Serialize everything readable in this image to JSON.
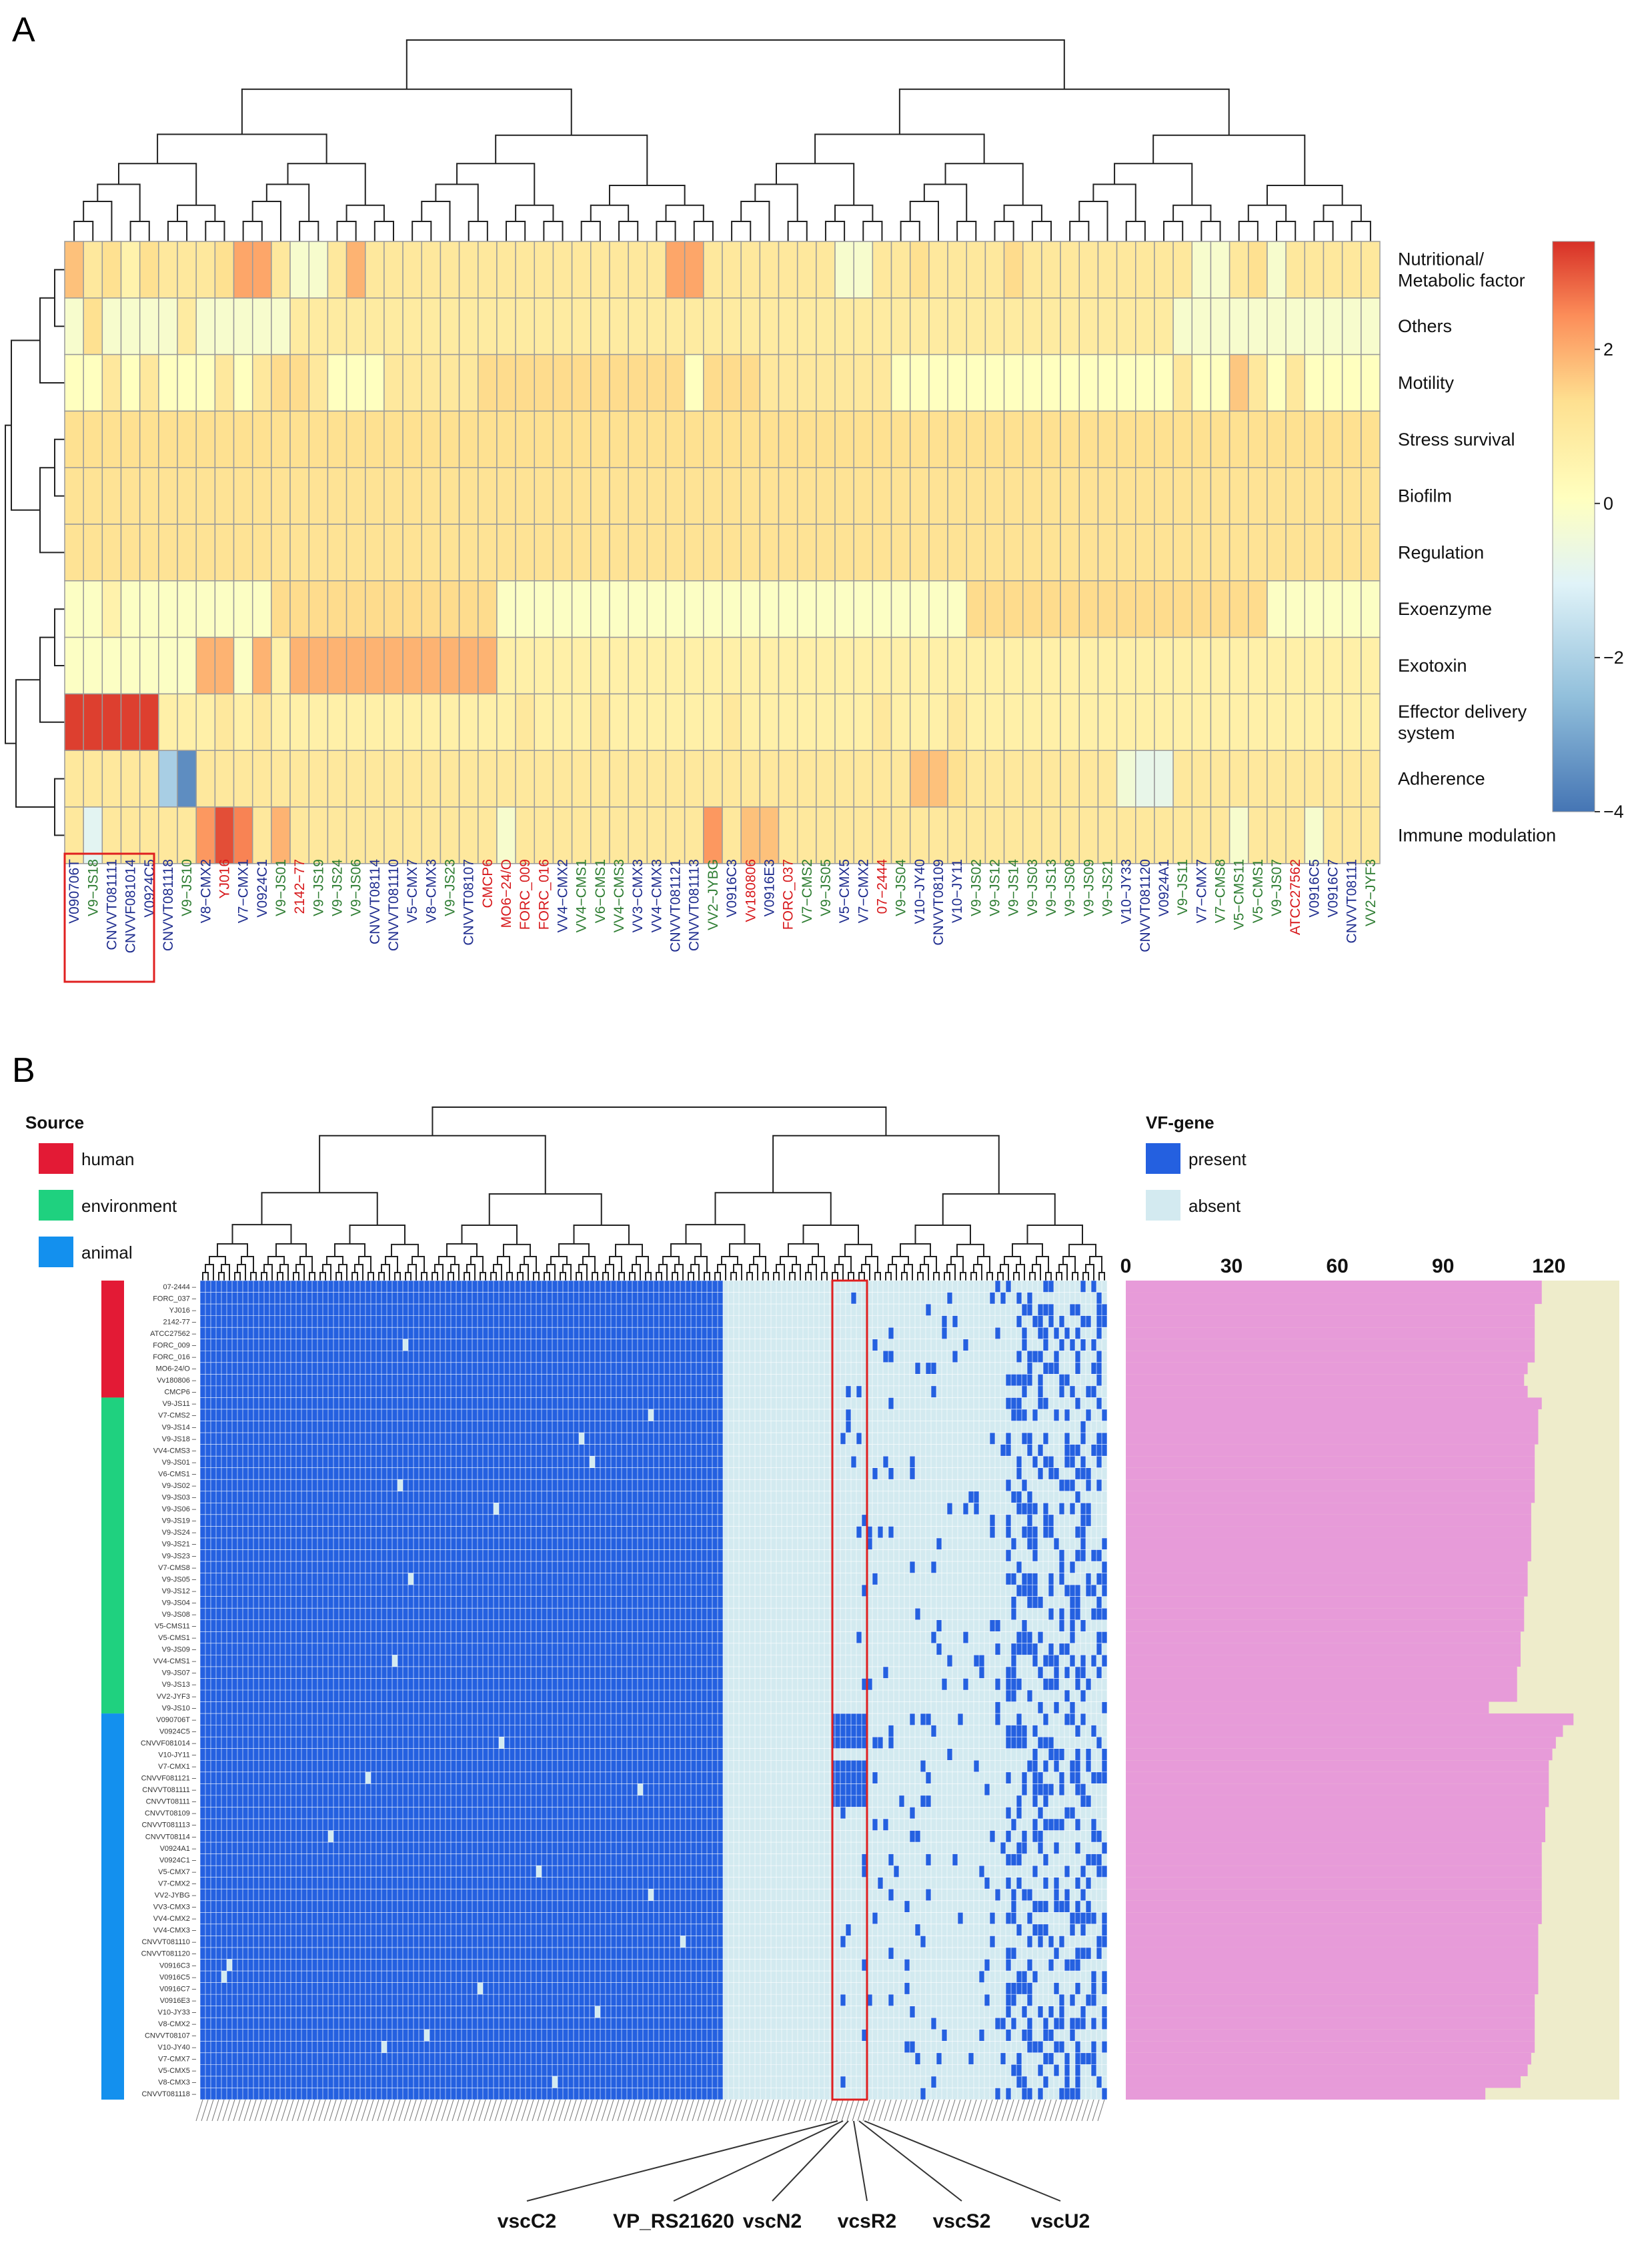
{
  "chart_data": [
    {
      "panel": "A",
      "type": "heatmap",
      "rows": [
        "Nutritional/ Metabolic factor",
        "Others",
        "Motility",
        "Stress survival",
        "Biofilm",
        "Regulation",
        "Exoenzyme",
        "Exotoxin",
        "Effector delivery system",
        "Adherence",
        "Immune modulation"
      ],
      "row_label_lines": [
        [
          "Nutritional/",
          "Metabolic factor"
        ],
        [
          "Others"
        ],
        [
          "Motility"
        ],
        [
          "Stress survival"
        ],
        [
          "Biofilm"
        ],
        [
          "Regulation"
        ],
        [
          "Exoenzyme"
        ],
        [
          "Exotoxin"
        ],
        [
          "Effector delivery",
          "system"
        ],
        [
          "Adherence"
        ],
        [
          "Immune modulation"
        ]
      ],
      "columns": [
        "V090706T",
        "V9−JS18",
        "CNVVT081111",
        "CNVVF081014",
        "V0924C5",
        "CNVVT081118",
        "V9−JS10",
        "V8−CMX2",
        "YJ016",
        "V7−CMX1",
        "V0924C1",
        "V9−JS01",
        "2142−77",
        "V9−JS19",
        "V9−JS24",
        "V9−JS06",
        "CNVVT08114",
        "CNVVT081110",
        "V5−CMX7",
        "V8−CMX3",
        "V9−JS23",
        "CNVVT08107",
        "CMCP6",
        "MO6−24/O",
        "FORC_009",
        "FORC_016",
        "VV4−CMX2",
        "VV4−CMS1",
        "V6−CMS1",
        "VV4−CMS3",
        "VV3−CMX3",
        "VV4−CMX3",
        "CNVVT081121",
        "CNVVT081113",
        "VV2−JYBG",
        "V0916C3",
        "Vv180806",
        "V0916E3",
        "FORC_037",
        "V7−CMS2",
        "V9−JS05",
        "V5−CMX5",
        "V7−CMX2",
        "07−2444",
        "V9−JS04",
        "V10−JY40",
        "CNVVT08109",
        "V10−JY11",
        "V9−JS02",
        "V9−JS12",
        "V9−JS14",
        "V9−JS03",
        "V9−JS13",
        "V9−JS08",
        "V9−JS09",
        "V9−JS21",
        "V10−JY33",
        "CNVVT081120",
        "V0924A1",
        "V9−JS11",
        "V7−CMX7",
        "V7−CMS8",
        "V5−CMS11",
        "V5−CMS1",
        "V9−JS07",
        "ATCC27562",
        "V0916C5",
        "V0916C7",
        "CNVVT08111",
        "VV2−JYF3"
      ],
      "column_colors": [
        "blue",
        "green",
        "blue",
        "blue",
        "blue",
        "blue",
        "green",
        "blue",
        "red",
        "blue",
        "blue",
        "green",
        "red",
        "green",
        "green",
        "green",
        "blue",
        "blue",
        "blue",
        "blue",
        "green",
        "blue",
        "red",
        "red",
        "red",
        "red",
        "blue",
        "green",
        "green",
        "green",
        "blue",
        "blue",
        "blue",
        "blue",
        "green",
        "blue",
        "red",
        "blue",
        "red",
        "green",
        "green",
        "blue",
        "blue",
        "red",
        "green",
        "blue",
        "blue",
        "blue",
        "green",
        "green",
        "green",
        "green",
        "green",
        "green",
        "green",
        "green",
        "blue",
        "blue",
        "blue",
        "green",
        "blue",
        "green",
        "green",
        "green",
        "green",
        "red",
        "blue",
        "blue",
        "blue",
        "green"
      ],
      "column_color_hex": {
        "blue": "#1f2d8f",
        "green": "#2e7d32",
        "red": "#d7191c"
      },
      "colorbar": {
        "min": -4,
        "max": 3.4,
        "ticks": [
          2,
          0,
          -2,
          -4
        ],
        "colors": [
          "#4575b4",
          "#91bfdb",
          "#e0f3f8",
          "#ffffbf",
          "#fee090",
          "#fc8d59",
          "#d73027"
        ]
      },
      "highlight_columns": [
        0,
        4
      ],
      "values": [
        [
          1.4,
          0.6,
          0.9,
          0.2,
          0.9,
          0.6,
          0.6,
          0.6,
          0.9,
          1.8,
          1.8,
          0.6,
          -0.6,
          -0.6,
          0.6,
          1.6,
          0.6,
          0.6,
          0.6,
          0.6,
          0.6,
          0.6,
          0.6,
          0.6,
          0.6,
          0.6,
          0.6,
          0.6,
          0.6,
          0.6,
          0.6,
          0.6,
          1.8,
          1.8,
          0.6,
          0.6,
          0.6,
          0.6,
          0.6,
          0.6,
          0.6,
          -0.6,
          -0.6,
          0.6,
          0.6,
          0.9,
          0.6,
          0.6,
          0.6,
          0.6,
          1.0,
          0.6,
          0.6,
          0.6,
          0.6,
          0.6,
          0.6,
          0.6,
          0.6,
          0.6,
          -0.6,
          -0.6,
          0.6,
          0.9,
          -0.6,
          0.6,
          0.6,
          0.6,
          0.6,
          0.6
        ],
        [
          -0.6,
          0.9,
          -0.6,
          -0.6,
          -0.6,
          -0.6,
          0.5,
          -0.6,
          -0.6,
          -0.6,
          -0.6,
          -0.6,
          0.5,
          0.5,
          0.5,
          0.5,
          0.5,
          0.5,
          0.5,
          0.5,
          0.5,
          0.5,
          0.5,
          0.5,
          0.5,
          0.5,
          0.5,
          0.5,
          0.5,
          0.5,
          0.5,
          0.5,
          0.5,
          0.5,
          0.5,
          0.5,
          0.5,
          0.5,
          0.5,
          0.5,
          0.5,
          0.5,
          0.5,
          0.5,
          0.5,
          0.5,
          0.5,
          0.5,
          0.5,
          0.5,
          0.5,
          0.5,
          0.5,
          0.5,
          0.5,
          0.5,
          0.5,
          0.5,
          0.5,
          -0.6,
          -0.6,
          -0.6,
          -0.6,
          -0.6,
          -0.6,
          -0.6,
          -0.6,
          -0.6,
          -0.6,
          -0.6
        ],
        [
          -0.3,
          -0.3,
          0.6,
          -0.3,
          0.6,
          -0.3,
          -0.3,
          -0.3,
          0.6,
          -0.3,
          0.6,
          1.0,
          1.0,
          0.6,
          -0.3,
          -0.3,
          -0.3,
          0.6,
          0.6,
          0.6,
          0.6,
          0.6,
          1.0,
          1.0,
          1.0,
          1.0,
          1.0,
          1.0,
          1.0,
          1.0,
          1.0,
          1.0,
          1.0,
          -0.3,
          1.0,
          1.0,
          1.0,
          0.6,
          0.6,
          0.6,
          0.6,
          0.6,
          0.6,
          0.6,
          -0.3,
          -0.3,
          -0.3,
          -0.3,
          -0.3,
          -0.3,
          -0.3,
          -0.3,
          -0.3,
          -0.3,
          -0.3,
          -0.3,
          -0.3,
          -0.3,
          -0.3,
          0.6,
          -0.3,
          -0.3,
          1.3,
          0.6,
          -0.3,
          0.6,
          -0.3,
          -0.3,
          -0.3,
          -0.3
        ],
        [
          0.9,
          0.9,
          0.9,
          0.9,
          0.9,
          0.9,
          0.9,
          0.9,
          0.9,
          0.9,
          0.9,
          0.9,
          0.9,
          0.9,
          0.9,
          0.9,
          0.9,
          0.9,
          0.9,
          0.9,
          0.9,
          0.9,
          0.9,
          0.9,
          0.9,
          0.9,
          0.9,
          0.9,
          0.9,
          0.9,
          0.9,
          0.9,
          0.9,
          0.9,
          0.9,
          0.9,
          0.9,
          0.9,
          0.9,
          0.9,
          0.9,
          0.9,
          0.9,
          0.9,
          0.9,
          0.9,
          0.9,
          0.9,
          0.9,
          0.9,
          0.9,
          0.9,
          0.9,
          0.9,
          0.9,
          0.9,
          0.9,
          0.9,
          0.9,
          0.9,
          0.9,
          0.9,
          0.9,
          0.9,
          0.9,
          0.9,
          0.9,
          0.9,
          0.9,
          0.9
        ],
        [
          0.8,
          0.8,
          0.8,
          0.8,
          0.8,
          0.8,
          0.8,
          0.8,
          0.8,
          0.8,
          0.8,
          0.8,
          0.8,
          0.8,
          0.8,
          0.8,
          0.8,
          0.8,
          0.8,
          0.8,
          0.8,
          0.8,
          0.8,
          0.8,
          0.8,
          0.8,
          0.8,
          0.8,
          0.8,
          0.8,
          0.8,
          0.8,
          0.8,
          0.8,
          0.8,
          0.8,
          0.8,
          0.8,
          0.8,
          0.8,
          0.8,
          0.8,
          0.8,
          0.8,
          0.8,
          0.8,
          0.8,
          0.8,
          0.8,
          0.8,
          0.8,
          0.8,
          0.8,
          0.8,
          0.8,
          0.8,
          0.8,
          0.8,
          0.8,
          0.8,
          0.8,
          0.8,
          0.8,
          0.8,
          0.8,
          0.8,
          0.8,
          0.8,
          0.8,
          0.8
        ],
        [
          0.8,
          0.8,
          0.8,
          0.8,
          0.8,
          0.8,
          0.8,
          0.8,
          0.8,
          0.8,
          0.8,
          0.8,
          0.8,
          0.8,
          0.8,
          0.8,
          0.8,
          0.8,
          0.8,
          0.8,
          0.8,
          0.8,
          0.8,
          0.8,
          0.8,
          0.8,
          0.8,
          0.8,
          0.8,
          0.8,
          0.8,
          0.8,
          0.8,
          0.8,
          0.8,
          0.8,
          0.8,
          0.8,
          0.8,
          0.8,
          0.8,
          0.8,
          0.8,
          0.8,
          0.8,
          0.8,
          0.8,
          0.8,
          0.8,
          0.8,
          0.8,
          0.8,
          0.8,
          0.8,
          0.8,
          0.8,
          0.8,
          0.8,
          0.8,
          0.8,
          0.8,
          0.8,
          0.8,
          0.8,
          0.8,
          0.8,
          0.8,
          0.8,
          0.8,
          0.8
        ],
        [
          -0.4,
          -0.4,
          0.2,
          -0.4,
          -0.4,
          -0.4,
          -0.4,
          -0.4,
          -0.4,
          -0.4,
          -0.4,
          1.0,
          1.0,
          1.0,
          1.0,
          1.0,
          1.0,
          1.0,
          1.0,
          1.0,
          1.0,
          1.0,
          1.0,
          -0.4,
          -0.4,
          -0.4,
          -0.4,
          -0.4,
          -0.4,
          -0.4,
          -0.4,
          -0.4,
          -0.4,
          -0.4,
          -0.4,
          -0.4,
          -0.4,
          -0.4,
          -0.4,
          -0.4,
          -0.4,
          -0.4,
          -0.4,
          -0.4,
          -0.4,
          -0.4,
          -0.4,
          -0.4,
          1.0,
          1.0,
          1.0,
          1.0,
          1.0,
          1.0,
          1.0,
          1.0,
          1.0,
          1.0,
          1.0,
          1.0,
          1.0,
          1.0,
          1.0,
          1.0,
          -0.4,
          -0.4,
          -0.4,
          -0.4,
          -0.4,
          -0.4
        ],
        [
          -0.4,
          -0.4,
          -0.4,
          -0.4,
          -0.4,
          -0.4,
          -0.4,
          1.6,
          1.6,
          -0.4,
          1.6,
          0.3,
          1.6,
          1.6,
          1.6,
          1.6,
          1.6,
          1.6,
          1.6,
          1.6,
          1.6,
          1.6,
          1.6,
          0.3,
          0.3,
          0.3,
          0.3,
          0.3,
          0.3,
          0.3,
          0.3,
          0.3,
          0.3,
          0.3,
          0.3,
          0.3,
          0.3,
          0.3,
          0.3,
          0.3,
          0.3,
          0.3,
          0.3,
          0.3,
          0.3,
          0.3,
          0.3,
          0.3,
          0.3,
          0.3,
          0.3,
          0.3,
          0.3,
          0.3,
          0.3,
          0.3,
          0.3,
          0.3,
          0.3,
          0.3,
          0.3,
          0.3,
          0.3,
          0.3,
          0.3,
          0.3,
          0.3,
          0.3,
          0.3,
          0.3
        ],
        [
          3.2,
          3.2,
          3.2,
          3.2,
          3.2,
          0.3,
          0.3,
          0.3,
          0.6,
          0.3,
          0.6,
          0.3,
          0.3,
          0.3,
          0.3,
          0.3,
          0.3,
          0.3,
          0.3,
          0.3,
          0.3,
          0.3,
          0.3,
          0.3,
          0.6,
          0.3,
          0.3,
          0.3,
          0.6,
          0.3,
          0.3,
          0.3,
          0.3,
          0.3,
          0.3,
          0.6,
          0.3,
          0.3,
          0.3,
          0.3,
          0.3,
          0.3,
          0.3,
          0.6,
          0.3,
          0.3,
          0.3,
          0.6,
          0.3,
          0.3,
          0.3,
          0.3,
          0.3,
          0.3,
          0.3,
          0.3,
          0.3,
          0.3,
          0.3,
          0.3,
          0.3,
          0.3,
          0.3,
          0.3,
          0.3,
          0.3,
          0.3,
          0.3,
          0.3,
          0.3
        ],
        [
          0.6,
          0.6,
          0.6,
          0.6,
          0.6,
          -2.4,
          -3.6,
          0.6,
          0.6,
          0.6,
          0.6,
          0.6,
          0.6,
          0.6,
          0.6,
          0.6,
          0.6,
          0.6,
          0.6,
          0.6,
          0.6,
          0.6,
          0.6,
          0.6,
          0.6,
          0.6,
          0.6,
          0.6,
          0.6,
          0.6,
          0.6,
          0.6,
          0.6,
          0.6,
          0.6,
          0.6,
          0.6,
          0.6,
          0.6,
          0.6,
          0.6,
          0.6,
          0.6,
          0.6,
          0.6,
          1.4,
          1.4,
          0.9,
          0.6,
          0.6,
          0.6,
          0.6,
          0.6,
          0.6,
          0.6,
          0.6,
          -0.8,
          -1.2,
          -1.2,
          0.6,
          0.6,
          0.6,
          0.6,
          0.6,
          0.6,
          0.6,
          0.6,
          0.6,
          0.6,
          0.6
        ],
        [
          0.6,
          -1.4,
          0.6,
          0.6,
          0.6,
          0.6,
          0.6,
          2.0,
          3.0,
          2.3,
          0.6,
          1.6,
          0.6,
          0.6,
          0.6,
          0.6,
          0.6,
          0.6,
          0.6,
          0.6,
          0.6,
          0.6,
          0.6,
          -0.6,
          0.6,
          0.6,
          0.6,
          0.6,
          0.6,
          0.6,
          0.6,
          0.6,
          0.6,
          0.6,
          2.0,
          0.6,
          1.4,
          1.4,
          0.6,
          0.6,
          0.6,
          0.6,
          0.6,
          0.6,
          0.6,
          0.6,
          0.6,
          0.6,
          0.6,
          0.6,
          0.6,
          0.6,
          0.6,
          0.6,
          0.6,
          0.6,
          0.6,
          0.6,
          0.6,
          0.6,
          0.6,
          0.6,
          -0.6,
          0.6,
          0.6,
          0.6,
          -0.6,
          0.6,
          0.6,
          0.6
        ]
      ]
    },
    {
      "panel": "B",
      "type": "heatmap",
      "strains": [
        "07-2444",
        "FORC_037",
        "YJ016",
        "2142-77",
        "ATCC27562",
        "FORC_009",
        "FORC_016",
        "MO6-24/O",
        "Vv180806",
        "CMCP6",
        "V9-JS11",
        "V7-CMS2",
        "V9-JS14",
        "V9-JS18",
        "VV4-CMS3",
        "V9-JS01",
        "V6-CMS1",
        "V9-JS02",
        "V9-JS03",
        "V9-JS06",
        "V9-JS19",
        "V9-JS24",
        "V9-JS21",
        "V9-JS23",
        "V7-CMS8",
        "V9-JS05",
        "V9-JS12",
        "V9-JS04",
        "V9-JS08",
        "V5-CMS11",
        "V5-CMS1",
        "V9-JS09",
        "VV4-CMS1",
        "V9-JS07",
        "V9-JS13",
        "VV2-JYF3",
        "V9-JS10",
        "V090706T",
        "V0924C5",
        "CNVVF081014",
        "V10-JY11",
        "V7-CMX1",
        "CNVVF081121",
        "CNVVT081111",
        "CNVVT08111",
        "CNVVT08109",
        "CNVVT081113",
        "CNVVT08114",
        "V0924A1",
        "V0924C1",
        "V5-CMX7",
        "V7-CMX2",
        "VV2-JYBG",
        "VV3-CMX3",
        "VV4-CMX2",
        "VV4-CMX3",
        "CNVVT081110",
        "CNVVT081120",
        "V0916C3",
        "V0916C5",
        "V0916C7",
        "V0916E3",
        "V10-JY33",
        "V8-CMX2",
        "CNVVT08107",
        "V10-JY40",
        "V7-CMX7",
        "V5-CMX5",
        "V8-CMX3",
        "CNVVT081118"
      ],
      "source_groups": [
        {
          "name": "human",
          "count": 10,
          "color": "#e31a35"
        },
        {
          "name": "environment",
          "count": 27,
          "color": "#1fd17f"
        },
        {
          "name": "animal",
          "count": 33,
          "color": "#1390ee"
        }
      ],
      "legend_source_title": "Source",
      "legend_vf_title": "VF-gene",
      "vf_legend": [
        {
          "name": "present",
          "color": "#2460e0"
        },
        {
          "name": "absent",
          "color": "#d3eaf0"
        }
      ],
      "bar_axis": {
        "ticks": [
          0,
          30,
          60,
          90,
          120
        ],
        "max": 140
      },
      "vf_counts": [
        118,
        118,
        116,
        116,
        116,
        116,
        116,
        114,
        113,
        114,
        118,
        117,
        117,
        117,
        116,
        116,
        116,
        116,
        116,
        115,
        115,
        115,
        115,
        115,
        114,
        114,
        114,
        113,
        113,
        113,
        112,
        112,
        112,
        111,
        111,
        111,
        103,
        127,
        124,
        122,
        121,
        120,
        120,
        120,
        120,
        119,
        119,
        119,
        118,
        118,
        118,
        118,
        118,
        118,
        118,
        117,
        117,
        117,
        117,
        117,
        117,
        116,
        116,
        116,
        116,
        116,
        115,
        114,
        112,
        102
      ],
      "highlighted_genes": [
        "vscC2",
        "VP_RS21620",
        "vscN2",
        "vcsR2",
        "vscS2",
        "vscU2"
      ]
    }
  ],
  "panel_labels": {
    "a": "A",
    "b": "B"
  }
}
